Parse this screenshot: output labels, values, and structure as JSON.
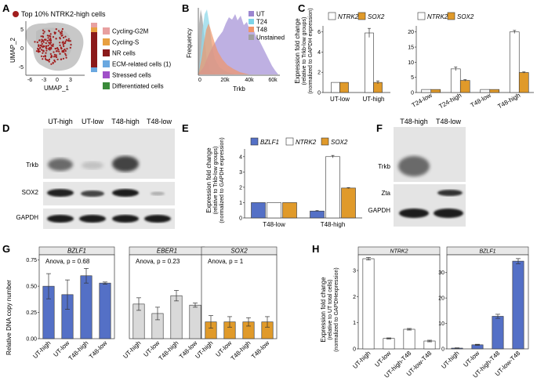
{
  "panels": {
    "a": {
      "letter": "A",
      "title": "Top 10% NTRK2-high cells",
      "xlabel": "UMAP_1",
      "ylabel": "UMAP_2",
      "xticks": [
        "-6",
        "-3",
        "0",
        "3"
      ],
      "yticks": [
        "5",
        "0",
        "-5"
      ],
      "legend": [
        {
          "label": "Cycling-G2M",
          "color": "#e8a0a0"
        },
        {
          "label": "Cycling-S",
          "color": "#e8a040"
        },
        {
          "label": "NR cells",
          "color": "#8b1a1a"
        },
        {
          "label": "ECM-related cells (1)",
          "color": "#6aa8e0"
        },
        {
          "label": "Stressed cells",
          "color": "#a050c8"
        },
        {
          "label": "Differentiated cells",
          "color": "#3a8a3a"
        }
      ]
    },
    "b": {
      "letter": "B",
      "xlabel": "Trkb",
      "ylabel": "Frequency",
      "xticks": [
        "0",
        "20k",
        "40k",
        "60k"
      ],
      "legend": [
        {
          "label": "UT",
          "color": "#9b86d0"
        },
        {
          "label": "T24",
          "color": "#7dd4e8"
        },
        {
          "label": "T48",
          "color": "#f0956a"
        },
        {
          "label": "Unstained",
          "color": "#a0a0a0"
        }
      ]
    },
    "c": {
      "letter": "C",
      "ylabel_lines": [
        "Expression fold change",
        "(relative to Trkb-low groups)",
        "(normalized to GAPDH expression)"
      ]
    },
    "d": {
      "letter": "D",
      "lanes": [
        "UT-high",
        "UT-low",
        "T48-high",
        "T48-low"
      ],
      "rows": [
        "Trkb",
        "SOX2",
        "GAPDH"
      ]
    },
    "e": {
      "letter": "E",
      "ylabel_lines": [
        "Expression fold change",
        "(relative to Trkb-low groups)",
        "(normalized to GAPDH expression)"
      ]
    },
    "f": {
      "letter": "F",
      "lanes": [
        "T48-high",
        "T48-low"
      ],
      "rows": [
        "Trkb",
        "Zta",
        "GAPDH"
      ]
    },
    "g": {
      "letter": "G",
      "ylabel": "Relative DNA copy number"
    },
    "h": {
      "letter": "H",
      "ylabel_lines": [
        "Expression fold change",
        "(relative to UT total cells)",
        "(normalized to GAPDHexpression)"
      ]
    }
  },
  "chart_data": [
    {
      "id": "C-left",
      "type": "bar",
      "categories": [
        "UT-low",
        "UT-high"
      ],
      "series": [
        {
          "name": "NTRK2",
          "color": "#ffffff",
          "values": [
            1.0,
            5.9
          ]
        },
        {
          "name": "SOX2",
          "color": "#e09a2a",
          "values": [
            1.0,
            1.0
          ]
        }
      ],
      "ylim": [
        0,
        6.6
      ],
      "yticks": [
        "0",
        "2",
        "4",
        "6"
      ]
    },
    {
      "id": "C-right",
      "type": "bar",
      "categories": [
        "T24-low",
        "T24-high",
        "T48-low",
        "T48-high"
      ],
      "series": [
        {
          "name": "NTRK2",
          "color": "#ffffff",
          "values": [
            1.0,
            7.8,
            1.0,
            20.0
          ]
        },
        {
          "name": "SOX2",
          "color": "#e09a2a",
          "values": [
            1.0,
            4.0,
            1.0,
            6.6
          ]
        }
      ],
      "ylim": [
        0,
        22
      ],
      "yticks": [
        "0",
        "5",
        "10",
        "15",
        "20"
      ]
    },
    {
      "id": "E",
      "type": "bar",
      "categories": [
        "T48-low",
        "T48-high"
      ],
      "series": [
        {
          "name": "BZLF1",
          "color": "#5470c6",
          "values": [
            1.0,
            0.45
          ]
        },
        {
          "name": "NTRK2",
          "color": "#ffffff",
          "values": [
            1.0,
            4.0
          ]
        },
        {
          "name": "SOX2",
          "color": "#e09a2a",
          "values": [
            1.0,
            1.95
          ]
        }
      ],
      "ylim": [
        0,
        4.5
      ],
      "yticks": [
        "0",
        "1",
        "2",
        "3",
        "4"
      ]
    },
    {
      "id": "G",
      "type": "bar",
      "categories": [
        "UT-high",
        "UT-low",
        "T48-high",
        "T48-low"
      ],
      "ylim": [
        0,
        0.8
      ],
      "yticks": [
        "0.00",
        "0.25",
        "0.50",
        "0.75"
      ],
      "facets": [
        {
          "title": "BZLF1",
          "stat": "Anova, p = 0.68",
          "color": "#5470c6",
          "values": [
            0.5,
            0.42,
            0.6,
            0.53
          ],
          "errors": [
            0.12,
            0.14,
            0.07,
            0.01
          ]
        },
        {
          "title": "EBER1",
          "stat": "Anova, p = 0.23",
          "color": "#d9d9d9",
          "values": [
            0.33,
            0.24,
            0.41,
            0.32
          ],
          "errors": [
            0.06,
            0.06,
            0.05,
            0.02
          ]
        },
        {
          "title": "SOX2",
          "stat": "Anova, p = 1",
          "color": "#e09a2a",
          "values": [
            0.16,
            0.16,
            0.16,
            0.16
          ],
          "errors": [
            0.06,
            0.05,
            0.04,
            0.05
          ]
        }
      ]
    },
    {
      "id": "H",
      "type": "bar",
      "categories": [
        "UT-high",
        "UT-low",
        "UT-high-T48",
        "UT-low-T48"
      ],
      "facets": [
        {
          "title": "NTRK2",
          "color": "#ffffff",
          "values": [
            3.45,
            0.4,
            0.75,
            0.3
          ],
          "errors": [
            0.05,
            0.02,
            0.03,
            0.03
          ],
          "ylim": [
            0,
            3.6
          ],
          "yticks": [
            "0",
            "1",
            "2",
            "3"
          ]
        },
        {
          "title": "BZLF1",
          "color": "#5470c6",
          "values": [
            0.3,
            1.6,
            12.8,
            34.5
          ],
          "errors": [
            0.1,
            0.2,
            0.8,
            1.0
          ],
          "ylim": [
            0,
            37
          ],
          "yticks": [
            "0",
            "10",
            "20",
            "30"
          ]
        }
      ]
    }
  ]
}
